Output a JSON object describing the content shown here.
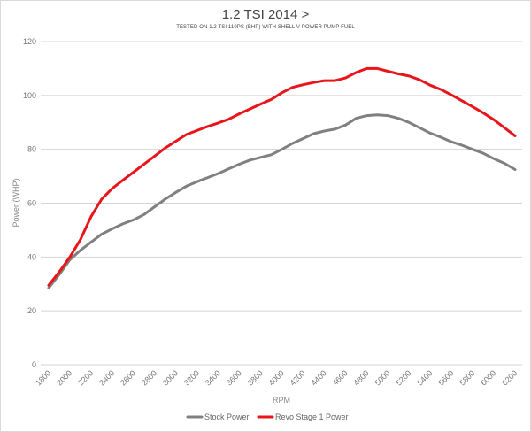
{
  "chart_data": {
    "type": "line",
    "title": "1.2 TSI 2014 >",
    "subtitle": "TESTED ON 1.2 TSI 110PS (BHP) WITH SHELL V POWER PUMP FUEL",
    "xlabel": "RPM",
    "ylabel": "Power (WHP)",
    "xlim": [
      1800,
      6200
    ],
    "ylim": [
      0,
      120
    ],
    "x_ticks": [
      "1800",
      "2000",
      "2200",
      "2400",
      "2600",
      "2800",
      "3000",
      "3200",
      "3400",
      "3600",
      "3800",
      "4000",
      "4200",
      "4400",
      "4600",
      "4800",
      "5000",
      "5200",
      "5400",
      "5600",
      "5800",
      "6000",
      "6200"
    ],
    "y_ticks": [
      "0",
      "20",
      "40",
      "60",
      "80",
      "100",
      "120"
    ],
    "grid": "horizontal",
    "legend": "bottom-center",
    "series": [
      {
        "name": "Stock Power",
        "color": "#808080",
        "x": [
          1800,
          1900,
          2000,
          2100,
          2200,
          2300,
          2400,
          2500,
          2600,
          2700,
          2800,
          2900,
          3000,
          3100,
          3200,
          3300,
          3400,
          3500,
          3600,
          3700,
          3800,
          3900,
          4000,
          4100,
          4200,
          4300,
          4400,
          4500,
          4600,
          4700,
          4800,
          4900,
          5000,
          5100,
          5200,
          5300,
          5400,
          5500,
          5600,
          5700,
          5800,
          5900,
          6000,
          6100,
          6200
        ],
        "values": [
          28.5,
          33.5,
          39,
          42.5,
          45.5,
          48.5,
          50.5,
          52.3,
          53.8,
          55.8,
          58.7,
          61.5,
          64,
          66.3,
          68,
          69.5,
          71,
          72.8,
          74.5,
          76,
          77,
          78,
          80,
          82.2,
          84,
          85.8,
          86.8,
          87.5,
          89,
          91.5,
          92.5,
          92.8,
          92.5,
          91.5,
          90,
          88,
          86,
          84.5,
          82.8,
          81.5,
          80,
          78.5,
          76.5,
          74.8,
          72.5
        ]
      },
      {
        "name": "Revo Stage 1 Power",
        "color": "#e8161a",
        "x": [
          1800,
          1900,
          2000,
          2100,
          2200,
          2300,
          2400,
          2500,
          2600,
          2700,
          2800,
          2900,
          3000,
          3100,
          3200,
          3300,
          3400,
          3500,
          3600,
          3700,
          3800,
          3900,
          4000,
          4100,
          4200,
          4300,
          4400,
          4500,
          4600,
          4700,
          4800,
          4900,
          5000,
          5100,
          5200,
          5300,
          5400,
          5500,
          5600,
          5700,
          5800,
          5900,
          6000,
          6100,
          6200
        ],
        "values": [
          29.5,
          34.5,
          40,
          46.5,
          55,
          61.5,
          65.5,
          68.5,
          71.5,
          74.5,
          77.5,
          80.5,
          83,
          85.5,
          87,
          88.5,
          89.8,
          91.2,
          93.2,
          95,
          96.8,
          98.5,
          101,
          103,
          104,
          104.8,
          105.5,
          105.5,
          106.5,
          108.5,
          110,
          110,
          109,
          108,
          107.2,
          105.8,
          103.8,
          102.2,
          100.2,
          98,
          95.8,
          93.5,
          91,
          88,
          85
        ]
      }
    ]
  }
}
